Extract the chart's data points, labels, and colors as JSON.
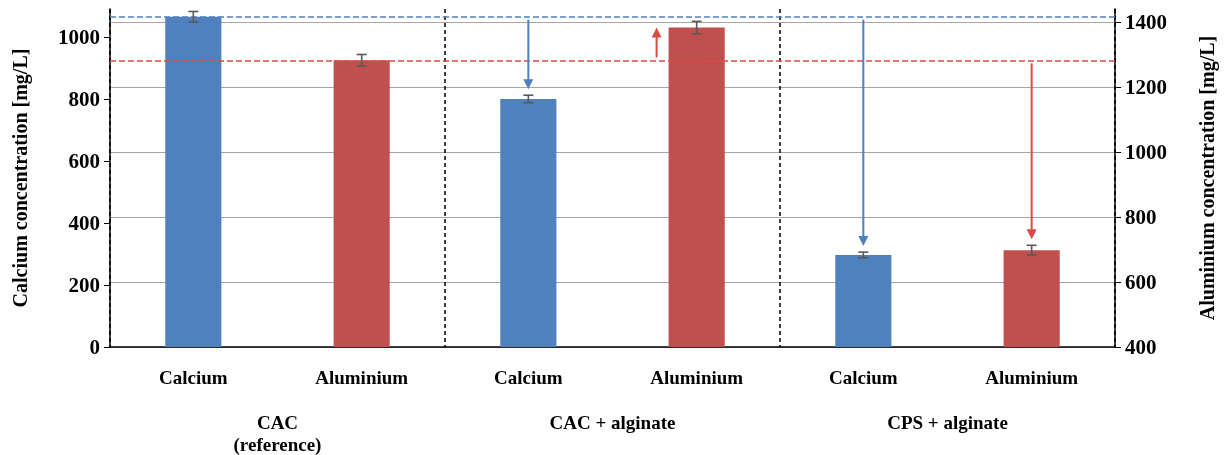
{
  "chart_data": {
    "type": "bar",
    "categories": [
      "CAC\n(reference)",
      "CAC + alginate",
      "CPS + alginate"
    ],
    "ylabel": "Calcium concentration [mg/L]",
    "y2label": "Aluminium concentration [mg/L]",
    "ylim": [
      0,
      1090
    ],
    "yticks": [
      0,
      200,
      400,
      600,
      800,
      1000
    ],
    "y2lim": [
      400,
      1440
    ],
    "y2ticks": [
      400,
      600,
      800,
      1000,
      1200,
      1400
    ],
    "grid": true,
    "series": [
      {
        "name": "Calcium",
        "color": "#4f81bd",
        "values": [
          1065,
          800,
          297
        ],
        "errors": [
          17,
          12,
          9
        ]
      },
      {
        "name": "Aluminium",
        "color": "#c0504d",
        "axis": "y2",
        "values": [
          1282,
          1383,
          698
        ],
        "errors": [
          18,
          19,
          15
        ]
      }
    ],
    "ref_lines": [
      {
        "axis": "y",
        "value": 1065,
        "color": "#4f81bd",
        "line_style": "dashed"
      },
      {
        "axis": "y2",
        "value": 1282,
        "color": "#e04a45",
        "line_style": "dashed"
      }
    ]
  }
}
